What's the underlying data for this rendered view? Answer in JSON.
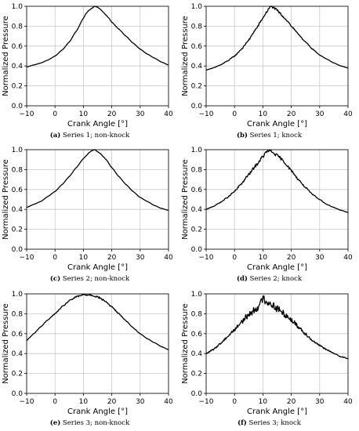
{
  "chart_data": [
    {
      "type": "line",
      "tag": "(a)",
      "caption": "Series 1; non-knock",
      "xlabel": "Crank Angle [°]",
      "ylabel": "Normalized Pressure",
      "xlim": [
        -10,
        40
      ],
      "ylim": [
        0,
        1.0
      ],
      "xticks": [
        "−10",
        "0",
        "10",
        "20",
        "30",
        "40"
      ],
      "yticks": [
        "0.0",
        "0.2",
        "0.4",
        "0.6",
        "0.8",
        "1.0"
      ],
      "grid": true,
      "noise": 0,
      "series": [
        {
          "x": [
            -10,
            -7.5,
            -5,
            -2.5,
            0,
            2.5,
            5,
            7.5,
            10,
            11,
            12,
            13,
            14,
            15,
            16,
            17,
            18,
            19,
            20,
            22.5,
            25,
            27.5,
            30,
            32.5,
            35,
            37.5,
            40
          ],
          "y": [
            0.39,
            0.41,
            0.43,
            0.46,
            0.5,
            0.56,
            0.64,
            0.75,
            0.88,
            0.93,
            0.96,
            0.98,
            1.0,
            0.99,
            0.97,
            0.94,
            0.91,
            0.88,
            0.84,
            0.77,
            0.7,
            0.63,
            0.57,
            0.52,
            0.48,
            0.44,
            0.41
          ]
        }
      ]
    },
    {
      "type": "line",
      "tag": "(b)",
      "caption": "Series 1; knock",
      "xlabel": "Crank Angle [°]",
      "ylabel": "Normalized Pressure",
      "xlim": [
        -10,
        40
      ],
      "ylim": [
        0,
        1.0
      ],
      "xticks": [
        "−10",
        "0",
        "10",
        "20",
        "30",
        "40"
      ],
      "yticks": [
        "0.0",
        "0.2",
        "0.4",
        "0.6",
        "0.8",
        "1.0"
      ],
      "grid": true,
      "noise": 0.008,
      "series": [
        {
          "x": [
            -10,
            -7.5,
            -5,
            -2.5,
            0,
            2.5,
            5,
            7.5,
            10,
            11,
            12,
            12.5,
            13,
            14,
            15,
            16,
            17,
            18,
            19,
            20,
            22.5,
            25,
            27.5,
            30,
            32.5,
            35,
            37.5,
            40
          ],
          "y": [
            0.36,
            0.38,
            0.41,
            0.45,
            0.5,
            0.57,
            0.66,
            0.77,
            0.88,
            0.93,
            0.97,
            0.99,
            1.0,
            0.98,
            0.96,
            0.93,
            0.9,
            0.87,
            0.84,
            0.8,
            0.72,
            0.64,
            0.57,
            0.51,
            0.47,
            0.43,
            0.4,
            0.38
          ]
        }
      ]
    },
    {
      "type": "line",
      "tag": "(c)",
      "caption": "Series 2; non-knock",
      "xlabel": "Crank Angle [°]",
      "ylabel": "Normalized Pressure",
      "xlim": [
        -10,
        40
      ],
      "ylim": [
        0,
        1.0
      ],
      "xticks": [
        "−10",
        "0",
        "10",
        "20",
        "30",
        "40"
      ],
      "yticks": [
        "0.0",
        "0.2",
        "0.4",
        "0.6",
        "0.8",
        "1.0"
      ],
      "grid": true,
      "noise": 0,
      "series": [
        {
          "x": [
            -10,
            -7.5,
            -5,
            -2.5,
            0,
            2.5,
            5,
            7.5,
            10,
            11,
            12,
            13,
            14,
            15,
            16,
            17,
            18,
            20,
            22.5,
            25,
            27.5,
            30,
            32.5,
            35,
            37.5,
            40
          ],
          "y": [
            0.42,
            0.45,
            0.48,
            0.53,
            0.58,
            0.65,
            0.73,
            0.82,
            0.91,
            0.94,
            0.97,
            0.99,
            1.0,
            0.98,
            0.96,
            0.93,
            0.9,
            0.82,
            0.73,
            0.65,
            0.58,
            0.52,
            0.48,
            0.44,
            0.41,
            0.39
          ]
        }
      ]
    },
    {
      "type": "line",
      "tag": "(d)",
      "caption": "Series 2; knock",
      "xlabel": "Crank Angle [°]",
      "ylabel": "Normalized Pressure",
      "xlim": [
        -10,
        40
      ],
      "ylim": [
        0,
        1.0
      ],
      "xticks": [
        "−10",
        "0",
        "10",
        "20",
        "30",
        "40"
      ],
      "yticks": [
        "0.0",
        "0.2",
        "0.4",
        "0.6",
        "0.8",
        "1.0"
      ],
      "grid": true,
      "noise": 0.012,
      "series": [
        {
          "x": [
            -10,
            -7.5,
            -5,
            -2.5,
            0,
            2.5,
            5,
            7.5,
            10,
            11,
            12,
            13,
            14,
            15,
            16,
            17,
            18,
            20,
            22.5,
            25,
            27.5,
            30,
            32.5,
            35,
            37.5,
            40
          ],
          "y": [
            0.4,
            0.43,
            0.47,
            0.52,
            0.58,
            0.66,
            0.75,
            0.84,
            0.93,
            0.97,
            0.99,
            0.98,
            0.96,
            0.94,
            0.92,
            0.89,
            0.86,
            0.79,
            0.7,
            0.62,
            0.55,
            0.5,
            0.45,
            0.42,
            0.39,
            0.37
          ]
        }
      ]
    },
    {
      "type": "line",
      "tag": "(e)",
      "caption": "Series 3; non-knock",
      "xlabel": "Crank Angle [°]",
      "ylabel": "Normalized Pressure",
      "xlim": [
        -10,
        40
      ],
      "ylim": [
        0,
        1.0
      ],
      "xticks": [
        "−10",
        "0",
        "10",
        "20",
        "30",
        "40"
      ],
      "yticks": [
        "0.0",
        "0.2",
        "0.4",
        "0.6",
        "0.8",
        "1.0"
      ],
      "grid": true,
      "noise": 0.007,
      "series": [
        {
          "x": [
            -10,
            -9,
            -7.5,
            -5,
            -2.5,
            0,
            2.5,
            5,
            7.5,
            10,
            12.5,
            15,
            17.5,
            20,
            22.5,
            25,
            27.5,
            30,
            32.5,
            35,
            37.5,
            40
          ],
          "y": [
            0.53,
            0.56,
            0.6,
            0.67,
            0.74,
            0.8,
            0.87,
            0.93,
            0.97,
            0.99,
            0.99,
            0.97,
            0.93,
            0.87,
            0.8,
            0.73,
            0.66,
            0.6,
            0.55,
            0.51,
            0.47,
            0.44
          ]
        }
      ]
    },
    {
      "type": "line",
      "tag": "(f)",
      "caption": "Series 3; knock",
      "xlabel": "Crank Angle [°]",
      "ylabel": "Normalized Pressure",
      "xlim": [
        -10,
        40
      ],
      "ylim": [
        0,
        1.0
      ],
      "xticks": [
        "−10",
        "0",
        "10",
        "20",
        "30",
        "40"
      ],
      "yticks": [
        "0.0",
        "0.2",
        "0.4",
        "0.6",
        "0.8",
        "1.0"
      ],
      "grid": true,
      "noise": 0.03,
      "series": [
        {
          "x": [
            -10,
            -7.5,
            -5,
            -2.5,
            0,
            2.5,
            5,
            7.5,
            9,
            10,
            11,
            12,
            13,
            15,
            17.5,
            20,
            22.5,
            25,
            27.5,
            30,
            32.5,
            35,
            37.5,
            40
          ],
          "y": [
            0.4,
            0.44,
            0.5,
            0.57,
            0.64,
            0.72,
            0.79,
            0.85,
            0.89,
            0.96,
            0.93,
            0.91,
            0.9,
            0.85,
            0.8,
            0.74,
            0.67,
            0.6,
            0.53,
            0.48,
            0.44,
            0.4,
            0.37,
            0.35
          ]
        }
      ]
    }
  ]
}
